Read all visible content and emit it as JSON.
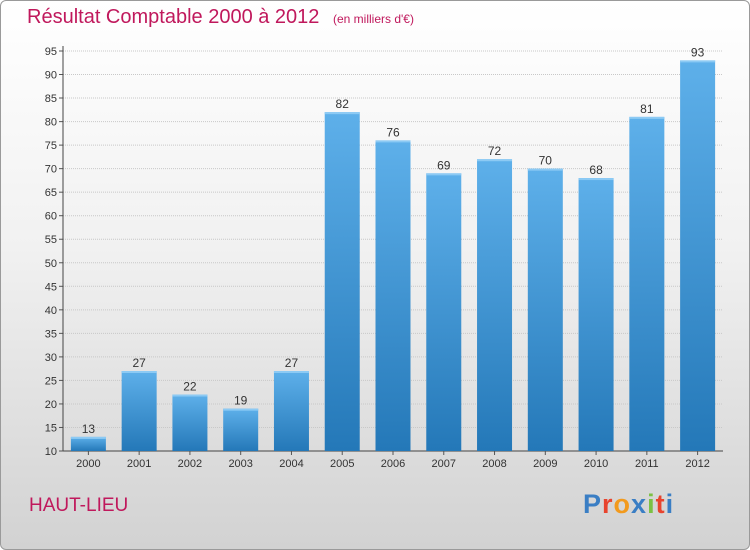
{
  "page": {
    "title": "Résultat Comptable 2000 à 2012",
    "subtitle": "(en milliers d'€)",
    "location": "HAUT-LIEU",
    "brand": "Proxiti",
    "colors": {
      "title": "#c0185c",
      "bar_top": "#5eb0ea",
      "bar_bottom": "#2478b8",
      "brand_letters": [
        "#3a7ec4",
        "#e8442e",
        "#f29a1d",
        "#3a7ec4",
        "#7bc143",
        "#e8442e",
        "#3a7ec4"
      ]
    }
  },
  "chart_data": {
    "type": "bar",
    "title": "Résultat Comptable 2000 à 2012",
    "subtitle": "(en milliers d'€)",
    "categories": [
      "2000",
      "2001",
      "2002",
      "2003",
      "2004",
      "2005",
      "2006",
      "2007",
      "2008",
      "2009",
      "2010",
      "2011",
      "2012"
    ],
    "values": [
      13,
      27,
      22,
      19,
      27,
      82,
      76,
      69,
      72,
      70,
      68,
      81,
      93
    ],
    "ylim": [
      10,
      95
    ],
    "yticks": [
      10,
      15,
      20,
      25,
      30,
      35,
      40,
      45,
      50,
      55,
      60,
      65,
      70,
      75,
      80,
      85,
      90,
      95
    ],
    "grid": true,
    "data_labels": true
  }
}
